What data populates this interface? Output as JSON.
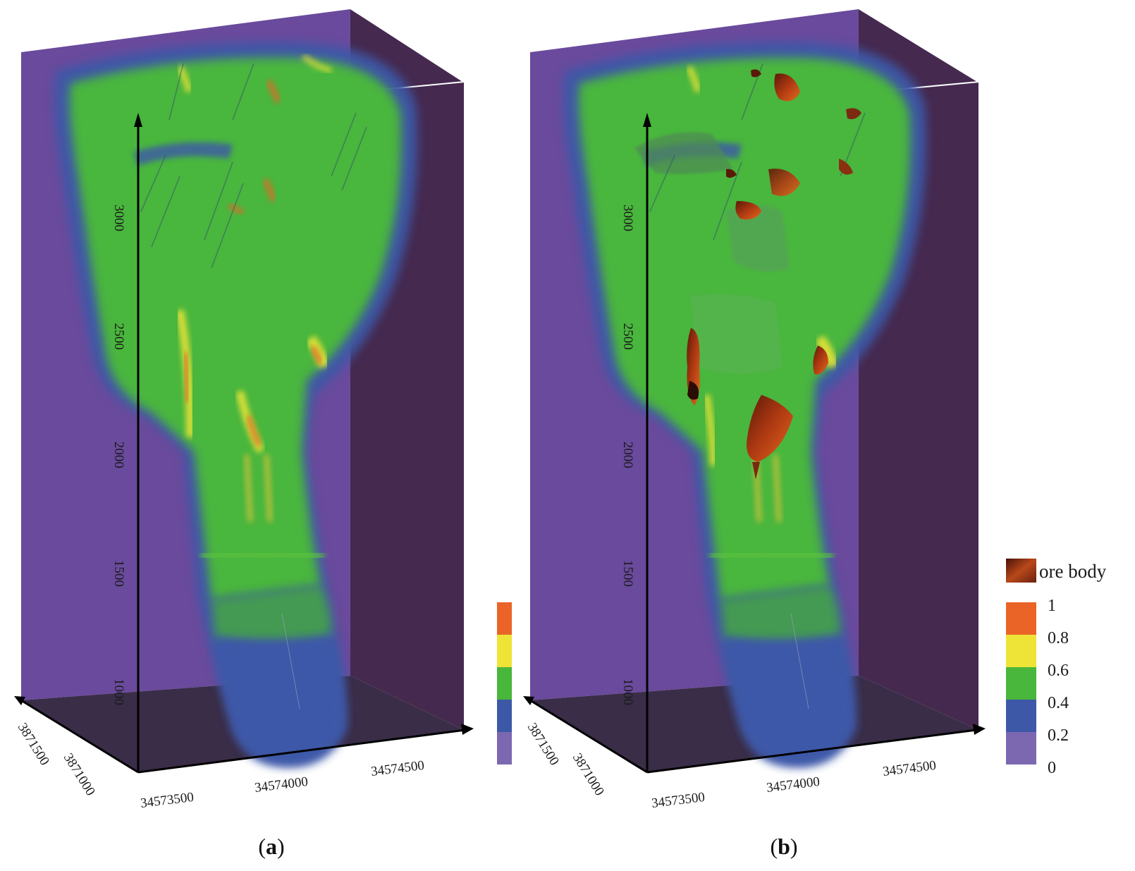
{
  "colors": {
    "purple": "#6a4a9c",
    "dark_purple": "#45294f",
    "floor": "#3a2d48",
    "green": "#49b63c",
    "blue": "#3e58a8",
    "yellow": "#eee437",
    "orange": "#ea6428",
    "light_purple": "#7b68b0",
    "ore": "#8a2e10"
  },
  "panels": [
    {
      "id": "a",
      "caption_open": "(",
      "caption_letter": "a",
      "caption_close": ")",
      "z_ticks": [
        "3000",
        "2500",
        "2000",
        "1500",
        "1000"
      ],
      "x_ticks": [
        "34573500",
        "34574000",
        "34574500"
      ],
      "y_ticks": [
        "3871500",
        "3871000"
      ],
      "show_ore": false
    },
    {
      "id": "b",
      "caption_open": "(",
      "caption_letter": "b",
      "caption_close": ")",
      "z_ticks": [
        "3000",
        "2500",
        "2000",
        "1500",
        "1000"
      ],
      "x_ticks": [
        "34573500",
        "34574000",
        "34574500"
      ],
      "y_ticks": [
        "3871500",
        "3871000"
      ],
      "show_ore": true
    }
  ],
  "legend": {
    "ore_label": "ore body",
    "levels": [
      "1",
      "0.8",
      "0.6",
      "0.4",
      "0.2",
      "0"
    ],
    "bands": [
      {
        "color": "#ea6428"
      },
      {
        "color": "#eee437"
      },
      {
        "color": "#49b63c"
      },
      {
        "color": "#3e58a8"
      },
      {
        "color": "#7b68b0"
      }
    ]
  }
}
